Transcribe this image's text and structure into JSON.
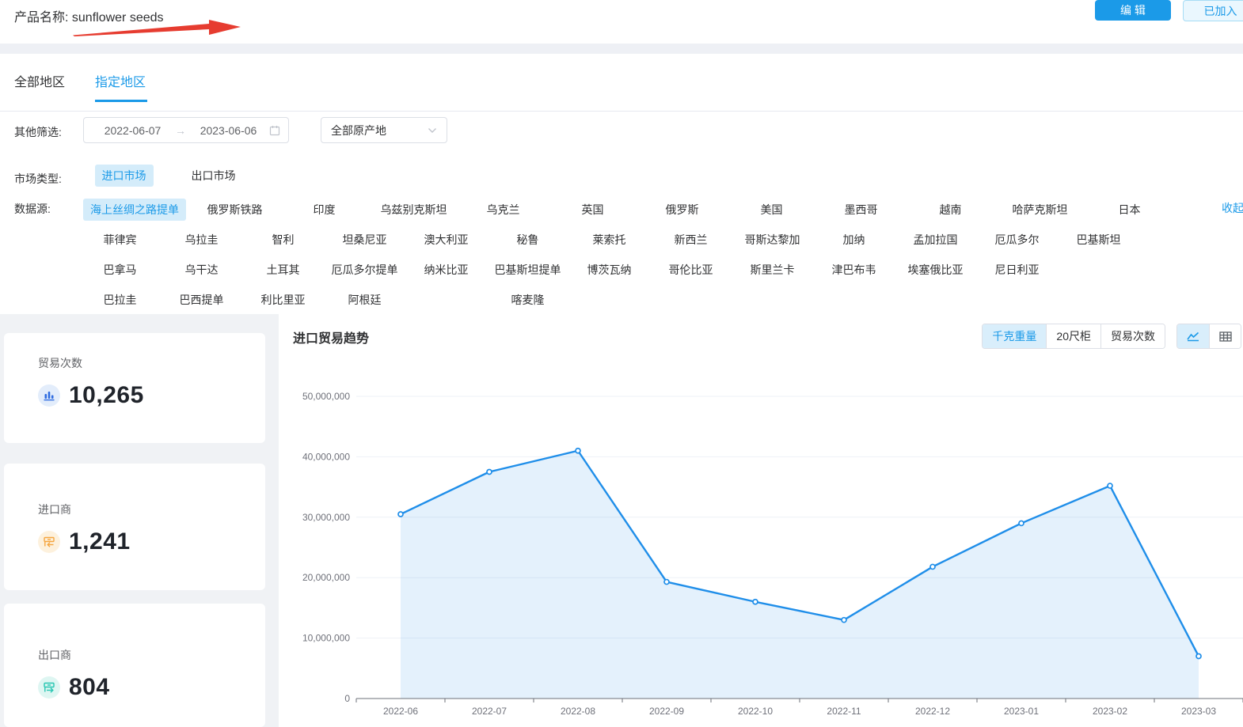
{
  "header": {
    "product_label": "产品名称: sunflower seeds",
    "edit_button": "编 辑",
    "added_button": "已加入"
  },
  "tabs": {
    "all_regions": "全部地区",
    "specified_regions": "指定地区"
  },
  "filters": {
    "other_label": "其他筛选:",
    "date_start": "2022-06-07",
    "date_end": "2023-06-06",
    "origin_selected": "全部原产地",
    "market_label": "市场类型:",
    "market_options": [
      {
        "label": "进口市场",
        "selected": true
      },
      {
        "label": "出口市场",
        "selected": false
      }
    ],
    "source_label": "数据源:",
    "collapse_label": "收起",
    "source_rows": [
      [
        {
          "label": "海上丝绸之路提单",
          "selected": true
        },
        {
          "label": "俄罗斯铁路",
          "selected": false
        },
        {
          "label": "印度",
          "selected": false
        },
        {
          "label": "乌兹别克斯坦",
          "selected": false
        },
        {
          "label": "乌克兰",
          "selected": false
        },
        {
          "label": "英国",
          "selected": false
        },
        {
          "label": "俄罗斯",
          "selected": false
        },
        {
          "label": "美国",
          "selected": false
        },
        {
          "label": "墨西哥",
          "selected": false
        },
        {
          "label": "越南",
          "selected": false
        },
        {
          "label": "哈萨克斯坦",
          "selected": false
        },
        {
          "label": "日本",
          "selected": false
        }
      ],
      [
        {
          "label": "菲律宾",
          "selected": false
        },
        {
          "label": "乌拉圭",
          "selected": false
        },
        {
          "label": "智利",
          "selected": false
        },
        {
          "label": "坦桑尼亚",
          "selected": false
        },
        {
          "label": "澳大利亚",
          "selected": false
        },
        {
          "label": "秘鲁",
          "selected": false
        },
        {
          "label": "莱索托",
          "selected": false
        },
        {
          "label": "新西兰",
          "selected": false
        },
        {
          "label": "哥斯达黎加",
          "selected": false
        },
        {
          "label": "加纳",
          "selected": false
        },
        {
          "label": "孟加拉国",
          "selected": false
        },
        {
          "label": "厄瓜多尔",
          "selected": false
        },
        {
          "label": "巴基斯坦",
          "selected": false
        }
      ],
      [
        {
          "label": "巴拿马",
          "selected": false
        },
        {
          "label": "乌干达",
          "selected": false
        },
        {
          "label": "土耳其",
          "selected": false
        },
        {
          "label": "厄瓜多尔提单",
          "selected": false
        },
        {
          "label": "纳米比亚",
          "selected": false
        },
        {
          "label": "巴基斯坦提单",
          "selected": false
        },
        {
          "label": "博茨瓦纳",
          "selected": false
        },
        {
          "label": "哥伦比亚",
          "selected": false
        },
        {
          "label": "斯里兰卡",
          "selected": false
        },
        {
          "label": "津巴布韦",
          "selected": false
        },
        {
          "label": "埃塞俄比亚",
          "selected": false
        },
        {
          "label": "尼日利亚",
          "selected": false
        }
      ],
      [
        {
          "label": "巴拉圭",
          "selected": false
        },
        {
          "label": "巴西提单",
          "selected": false
        },
        {
          "label": "利比里亚",
          "selected": false
        },
        {
          "label": "阿根廷",
          "selected": false
        },
        {
          "label": "",
          "selected": false,
          "spacer": true
        },
        {
          "label": "喀麦隆",
          "selected": false
        }
      ]
    ]
  },
  "stats": {
    "trade_count": {
      "label": "贸易次数",
      "value": "10,265"
    },
    "importers": {
      "label": "进口商",
      "value": "1,241"
    },
    "exporters": {
      "label": "出口商",
      "value": "804"
    }
  },
  "chart": {
    "title": "进口贸易趋势",
    "unit_options": [
      {
        "label": "千克重量",
        "selected": true
      },
      {
        "label": "20尺柜",
        "selected": false
      },
      {
        "label": "贸易次数",
        "selected": false
      }
    ],
    "view_options": [
      {
        "icon": "line-chart-icon",
        "selected": true
      },
      {
        "icon": "table-icon",
        "selected": false
      }
    ]
  },
  "chart_data": {
    "type": "area",
    "title": "进口贸易趋势",
    "x": [
      "2022-06",
      "2022-07",
      "2022-08",
      "2022-09",
      "2022-10",
      "2022-11",
      "2022-12",
      "2023-01",
      "2023-02",
      "2023-03"
    ],
    "values": [
      30500000,
      37500000,
      41000000,
      19300000,
      16000000,
      13000000,
      21800000,
      29000000,
      35200000,
      7000000
    ],
    "ylim": [
      0,
      50000000
    ],
    "y_ticks": [
      0,
      10000000,
      20000000,
      30000000,
      40000000,
      50000000
    ],
    "grid": true,
    "legend": "none",
    "xlabel": "",
    "ylabel": ""
  },
  "colors": {
    "accent": "#1b9ae8",
    "line": "#1f8ee9",
    "area": "rgba(31,142,233,0.12)",
    "grid": "#eef1f7",
    "axis": "#6e7079",
    "selected_tag_bg": "#d4ecfa",
    "trade_icon": "#2e6be0",
    "importer_icon": "#f5a640",
    "exporter_icon": "#26c6b2",
    "annotation_arrow": "#e63c30"
  }
}
